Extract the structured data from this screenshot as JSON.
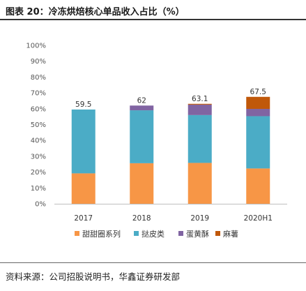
{
  "header": {
    "title": "图表 20：冷冻烘焙核心单品收入占比（%）"
  },
  "footer": {
    "source": "资料来源：公司招股说明书，华鑫证券研发部"
  },
  "chart_data": {
    "type": "bar",
    "stacked": true,
    "categories": [
      "2017",
      "2018",
      "2019",
      "2020H1"
    ],
    "series": [
      {
        "name": "甜甜圈系列",
        "color": "#F79646",
        "values": [
          19.2,
          25.6,
          25.8,
          22.3
        ]
      },
      {
        "name": "挞皮类",
        "color": "#4BACC6",
        "values": [
          40.3,
          33.4,
          30.2,
          33.0
        ]
      },
      {
        "name": "蛋黄酥",
        "color": "#8064A2",
        "values": [
          0,
          3.0,
          6.6,
          4.6
        ]
      },
      {
        "name": "麻薯",
        "color": "#C0580A",
        "values": [
          0,
          0,
          0.5,
          7.6
        ]
      }
    ],
    "totals": [
      "59.5",
      "62",
      "63.1",
      "67.5"
    ],
    "y_ticks": [
      "0%",
      "10%",
      "20%",
      "30%",
      "40%",
      "50%",
      "60%",
      "70%",
      "80%",
      "90%",
      "100%"
    ],
    "ylim": [
      0,
      100
    ],
    "grid": false,
    "legend_position": "bottom"
  }
}
